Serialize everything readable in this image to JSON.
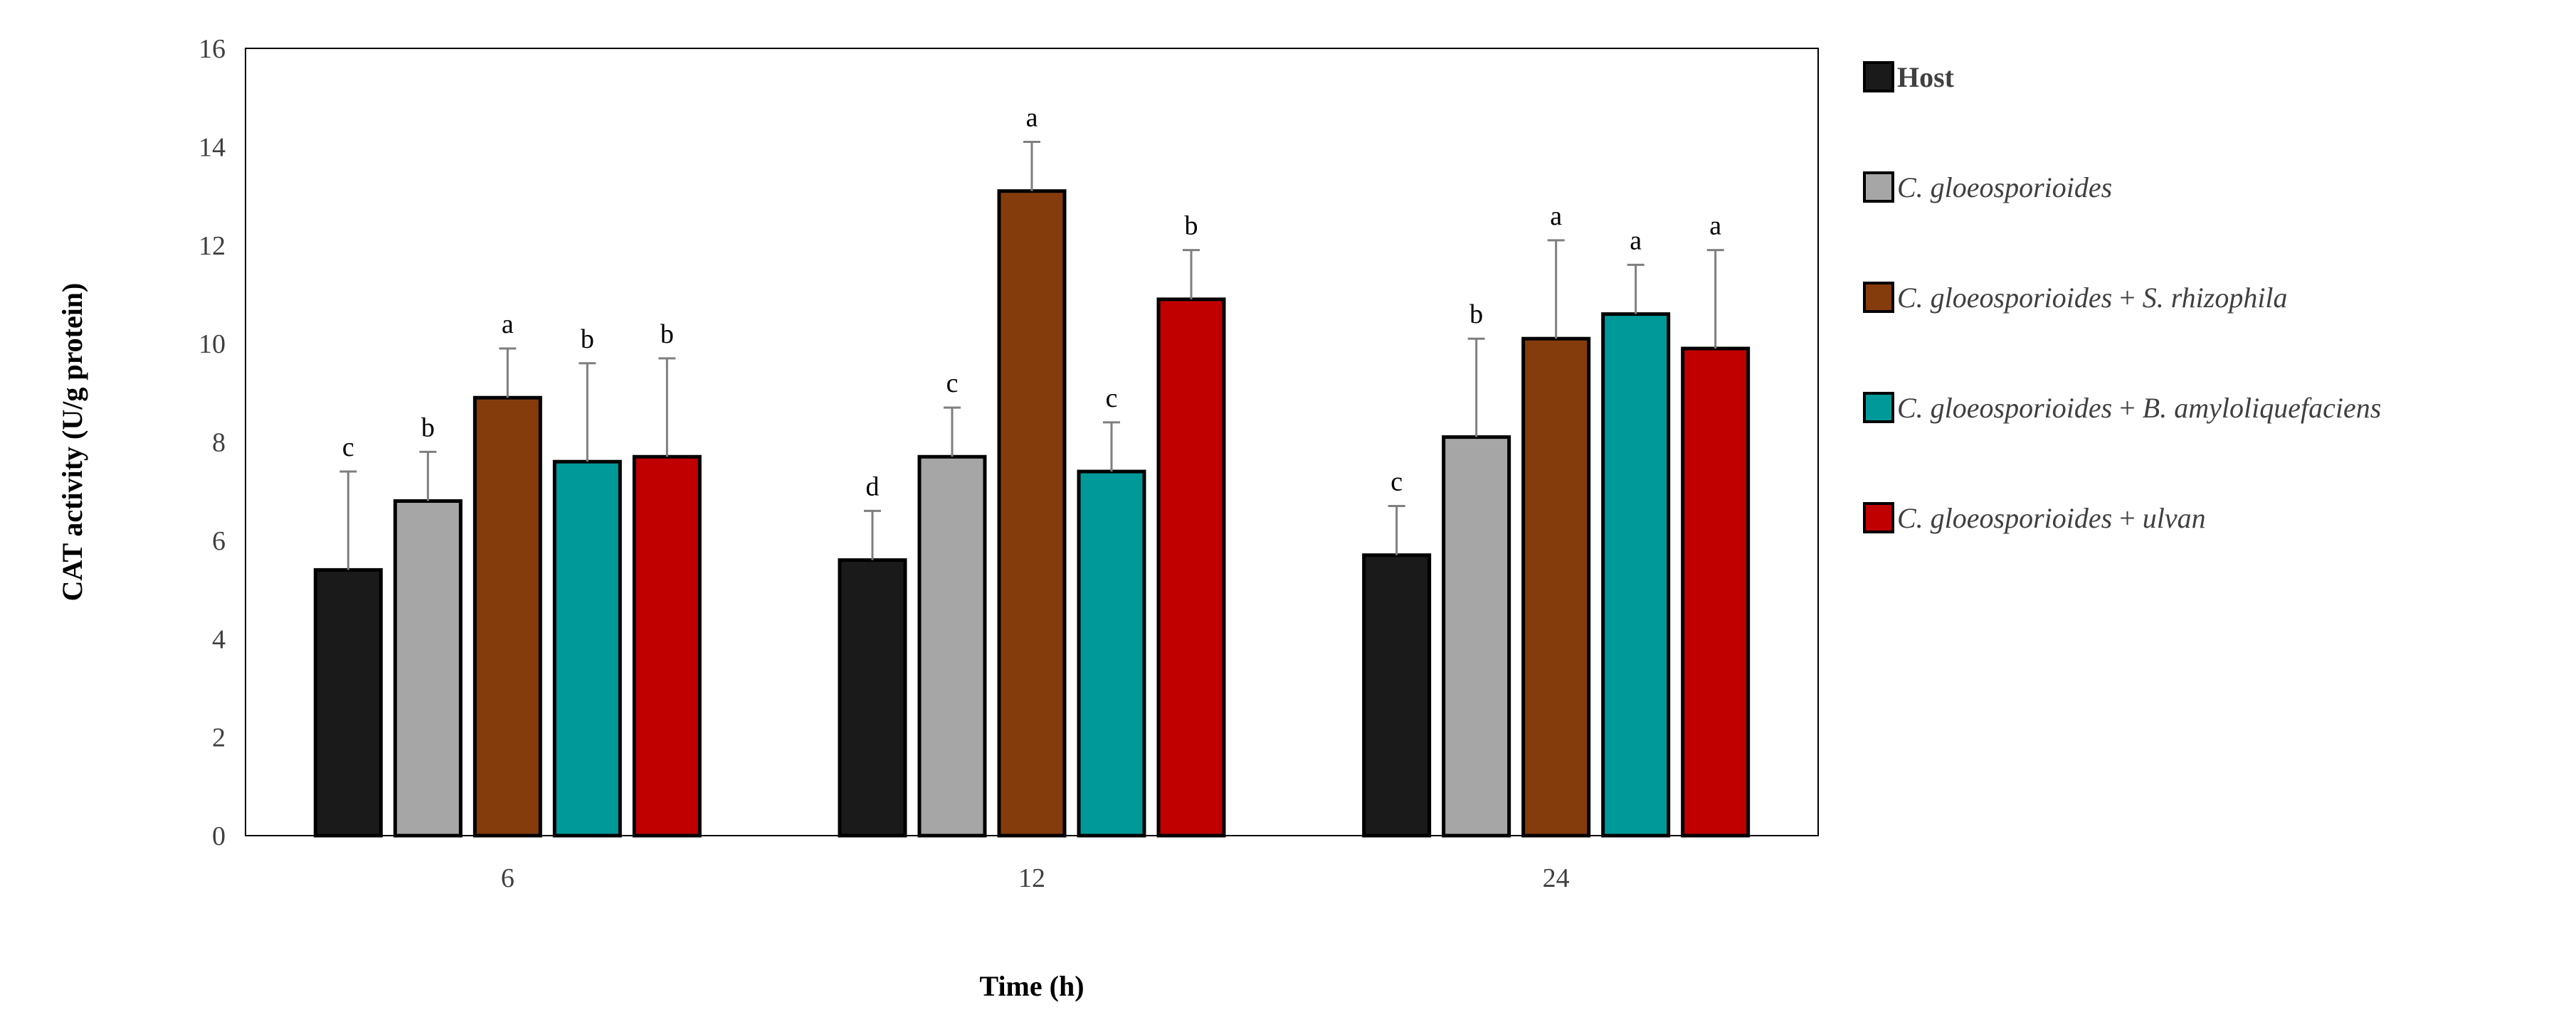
{
  "chart_data": {
    "type": "bar",
    "title": "",
    "xlabel": "Time (h)",
    "ylabel": "CAT activity (U/g protein)",
    "ylim": [
      0,
      16
    ],
    "yticks": [
      0,
      2,
      4,
      6,
      8,
      10,
      12,
      14,
      16
    ],
    "grid": false,
    "legend_position": "right",
    "categories": [
      "6",
      "12",
      "24"
    ],
    "series": [
      {
        "name": "Host",
        "legend_parts": [
          {
            "text": "Host",
            "italic": false,
            "bold": true
          }
        ],
        "color": "#1a1a1a",
        "values": [
          5.4,
          5.6,
          5.7
        ],
        "errors": [
          2.0,
          1.0,
          1.0
        ],
        "letters": [
          "c",
          "d",
          "c"
        ]
      },
      {
        "name": "C. gloeosporioides",
        "legend_parts": [
          {
            "text": "C. gloeosporioides",
            "italic": true,
            "bold": false
          }
        ],
        "color": "#a6a6a6",
        "values": [
          6.8,
          7.7,
          8.1
        ],
        "errors": [
          1.0,
          1.0,
          2.0
        ],
        "letters": [
          "b",
          "c",
          "b"
        ]
      },
      {
        "name": "C. gloeosporioides + S. rhizophila",
        "legend_parts": [
          {
            "text": "C. gloeosporioides",
            "italic": true,
            "bold": false
          },
          {
            "text": " + ",
            "italic": false,
            "bold": false
          },
          {
            "text": "S. rhizophila",
            "italic": true,
            "bold": false
          }
        ],
        "color": "#843c0c",
        "values": [
          8.9,
          13.1,
          10.1
        ],
        "errors": [
          1.0,
          1.0,
          2.0
        ],
        "letters": [
          "a",
          "a",
          "a"
        ]
      },
      {
        "name": "C. gloeosporioides + B. amyloliquefaciens",
        "legend_parts": [
          {
            "text": "C. gloeosporioides",
            "italic": true,
            "bold": false
          },
          {
            "text": " + ",
            "italic": false,
            "bold": false
          },
          {
            "text": "B. amyloliquefaciens",
            "italic": true,
            "bold": false
          }
        ],
        "color": "#009999",
        "values": [
          7.6,
          7.4,
          10.6
        ],
        "errors": [
          2.0,
          1.0,
          1.0
        ],
        "letters": [
          "b",
          "c",
          "a"
        ]
      },
      {
        "name": "C. gloeosporioides + ulvan",
        "legend_parts": [
          {
            "text": "C. gloeosporioides",
            "italic": true,
            "bold": false
          },
          {
            "text": " + ",
            "italic": false,
            "bold": false
          },
          {
            "text": "ulvan",
            "italic": true,
            "bold": false
          }
        ],
        "color": "#c00000",
        "values": [
          7.7,
          10.9,
          9.9
        ],
        "errors": [
          2.0,
          1.0,
          2.0
        ],
        "letters": [
          "b",
          "b",
          "a"
        ]
      }
    ]
  }
}
